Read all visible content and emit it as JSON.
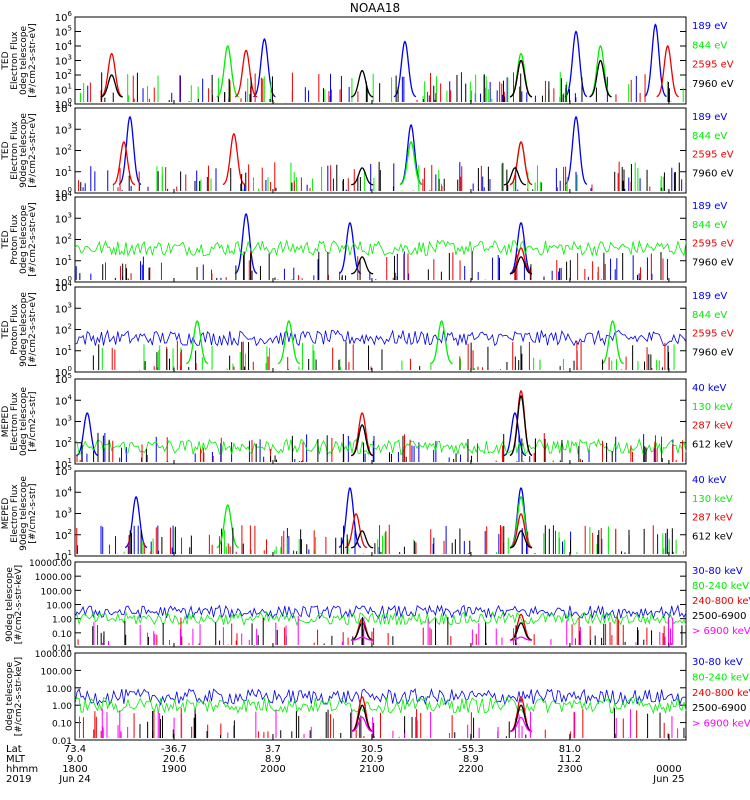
{
  "title": "NOAA18",
  "colors": {
    "black": "#000000",
    "red": "#ee0000",
    "green": "#00ee00",
    "blue": "#0000ee",
    "magenta": "#ff00ff"
  },
  "chart_data": [
    {
      "type": "line",
      "panel": 1,
      "ylabel": [
        "TED",
        "Electron Flux",
        "0deg telescope",
        "[#/cm2-s-str-eV]"
      ],
      "ylog": true,
      "ylim": [
        1,
        1000000
      ],
      "yticks": [
        "10^0",
        "10^1",
        "10^2",
        "10^3",
        "10^4",
        "10^5",
        "10^6"
      ],
      "series": [
        {
          "name": "7960 eV",
          "color": "black",
          "peaks": [
            {
              "t": 0.06,
              "y": 100
            },
            {
              "t": 0.47,
              "y": 200
            },
            {
              "t": 0.73,
              "y": 1000
            },
            {
              "t": 0.86,
              "y": 1000
            }
          ]
        },
        {
          "name": "2595 eV",
          "color": "red",
          "peaks": [
            {
              "t": 0.06,
              "y": 3000
            },
            {
              "t": 0.28,
              "y": 5000
            },
            {
              "t": 0.73,
              "y": 1000
            },
            {
              "t": 0.97,
              "y": 10000
            }
          ]
        },
        {
          "name": "844 eV",
          "color": "green",
          "peaks": [
            {
              "t": 0.25,
              "y": 10000
            },
            {
              "t": 0.73,
              "y": 3000
            },
            {
              "t": 0.86,
              "y": 10000
            }
          ]
        },
        {
          "name": "189 eV",
          "color": "blue",
          "peaks": [
            {
              "t": 0.31,
              "y": 30000
            },
            {
              "t": 0.54,
              "y": 20000
            },
            {
              "t": 0.82,
              "y": 100000
            },
            {
              "t": 0.95,
              "y": 300000
            }
          ]
        }
      ]
    },
    {
      "type": "line",
      "panel": 2,
      "ylabel": [
        "TED",
        "Electron Flux",
        "90deg telescope",
        "[#/cm2-s-str-eV]"
      ],
      "ylog": true,
      "ylim": [
        1,
        100000
      ],
      "yticks": [
        "10^0",
        "10^1",
        "10^2",
        "10^3",
        "10^4"
      ],
      "series": [
        {
          "name": "7960 eV",
          "color": "black",
          "peaks": [
            {
              "t": 0.47,
              "y": 30
            },
            {
              "t": 0.72,
              "y": 30
            }
          ]
        },
        {
          "name": "2595 eV",
          "color": "red",
          "peaks": [
            {
              "t": 0.08,
              "y": 1000
            },
            {
              "t": 0.26,
              "y": 3000
            },
            {
              "t": 0.73,
              "y": 1000
            }
          ]
        },
        {
          "name": "844 eV",
          "color": "green",
          "peaks": [
            {
              "t": 0.55,
              "y": 1000
            },
            {
              "t": 0.73,
              "y": 1000
            }
          ]
        },
        {
          "name": "189 eV",
          "color": "blue",
          "peaks": [
            {
              "t": 0.09,
              "y": 30000
            },
            {
              "t": 0.55,
              "y": 10000
            },
            {
              "t": 0.82,
              "y": 30000
            }
          ]
        }
      ]
    },
    {
      "type": "line",
      "panel": 3,
      "ylabel": [
        "TED",
        "Proton Flux",
        "0deg telescope",
        "[#/cm2-s-str-eV]"
      ],
      "ylog": true,
      "ylim": [
        1,
        100000
      ],
      "yticks": [
        "10^0",
        "10^1",
        "10^2",
        "10^3",
        "10^4"
      ],
      "series": [
        {
          "name": "7960 eV",
          "color": "black",
          "peaks": [
            {
              "t": 0.47,
              "y": 30
            },
            {
              "t": 0.73,
              "y": 30
            }
          ]
        },
        {
          "name": "2595 eV",
          "color": "red",
          "peaks": [
            {
              "t": 0.73,
              "y": 100
            }
          ]
        },
        {
          "name": "844 eV",
          "color": "green",
          "level": 100
        },
        {
          "name": "189 eV",
          "color": "blue",
          "peaks": [
            {
              "t": 0.28,
              "y": 10000
            },
            {
              "t": 0.45,
              "y": 3000
            },
            {
              "t": 0.73,
              "y": 3000
            }
          ]
        }
      ]
    },
    {
      "type": "line",
      "panel": 4,
      "ylabel": [
        "TED",
        "Proton Flux",
        "90deg telescope",
        "[#/cm2-s-str-eV]"
      ],
      "ylog": true,
      "ylim": [
        1,
        100000
      ],
      "yticks": [
        "10^0",
        "10^1",
        "10^2",
        "10^3",
        "10^4"
      ],
      "series": [
        {
          "name": "7960 eV",
          "color": "black",
          "peaks": []
        },
        {
          "name": "2595 eV",
          "color": "red",
          "peaks": []
        },
        {
          "name": "844 eV",
          "color": "green",
          "peaks": [
            {
              "t": 0.2,
              "y": 1000
            },
            {
              "t": 0.35,
              "y": 1000
            },
            {
              "t": 0.6,
              "y": 1000
            },
            {
              "t": 0.88,
              "y": 1000
            }
          ]
        },
        {
          "name": "189 eV",
          "color": "blue",
          "level": 100
        }
      ]
    },
    {
      "type": "line",
      "panel": 5,
      "ylabel": [
        "MEPED",
        "Electron Flux",
        "0deg telescope",
        "[#/cm2-s-str]"
      ],
      "ylog": true,
      "ylim": [
        10,
        1000000
      ],
      "yticks": [
        "10^1",
        "10^2",
        "10^3",
        "10^4",
        "10^5"
      ],
      "series": [
        {
          "name": "612 keV",
          "color": "black",
          "peaks": [
            {
              "t": 0.47,
              "y": 2000
            },
            {
              "t": 0.73,
              "y": 100000
            }
          ]
        },
        {
          "name": "287 keV",
          "color": "red",
          "peaks": [
            {
              "t": 0.47,
              "y": 10000
            },
            {
              "t": 0.73,
              "y": 200000
            }
          ]
        },
        {
          "name": "130 keV",
          "color": "green",
          "level": 100
        },
        {
          "name": "40 keV",
          "color": "blue",
          "peaks": [
            {
              "t": 0.02,
              "y": 10000
            },
            {
              "t": 0.72,
              "y": 10000
            }
          ]
        }
      ]
    },
    {
      "type": "line",
      "panel": 6,
      "ylabel": [
        "MEPED",
        "Electron Flux",
        "90deg telescope",
        "[#/cm2-s-str]"
      ],
      "ylog": true,
      "ylim": [
        10,
        1000000
      ],
      "yticks": [
        "10^1",
        "10^2",
        "10^3",
        "10^4",
        "10^5"
      ],
      "series": [
        {
          "name": "612 keV",
          "color": "black",
          "peaks": [
            {
              "t": 0.47,
              "y": 300
            },
            {
              "t": 0.73,
              "y": 300
            }
          ]
        },
        {
          "name": "287 keV",
          "color": "red",
          "peaks": [
            {
              "t": 0.46,
              "y": 3000
            },
            {
              "t": 0.73,
              "y": 3000
            }
          ]
        },
        {
          "name": "130 keV",
          "color": "green",
          "peaks": [
            {
              "t": 0.25,
              "y": 10000
            },
            {
              "t": 0.73,
              "y": 30000
            }
          ]
        },
        {
          "name": "40 keV",
          "color": "blue",
          "peaks": [
            {
              "t": 0.1,
              "y": 30000
            },
            {
              "t": 0.45,
              "y": 100000
            },
            {
              "t": 0.73,
              "y": 100000
            }
          ]
        }
      ]
    },
    {
      "type": "scatter",
      "panel": 7,
      "ylabel": [
        "90deg telescope",
        "[#/cm2-s-str-keV]"
      ],
      "ylog": true,
      "ylim": [
        0.01,
        10000
      ],
      "yticks": [
        "0.01",
        "0.10",
        "1.00",
        "10.00",
        "100.00",
        "1000.00",
        "10000.00"
      ],
      "series": [
        {
          "name": "> 6900 keV",
          "color": "magenta",
          "peaks": [
            {
              "t": 0.47,
              "y": 0.05
            },
            {
              "t": 0.73,
              "y": 0.05
            }
          ]
        },
        {
          "name": "2500-6900",
          "color": "black",
          "peaks": [
            {
              "t": 0.47,
              "y": 0.5
            },
            {
              "t": 0.73,
              "y": 0.5
            }
          ]
        },
        {
          "name": "240-800 keV",
          "color": "red",
          "peaks": [
            {
              "t": 0.47,
              "y": 1
            },
            {
              "t": 0.73,
              "y": 2
            }
          ]
        },
        {
          "name": "80-240 keV",
          "color": "green",
          "level": 1
        },
        {
          "name": "30-80 keV",
          "color": "blue",
          "level": 3
        }
      ]
    },
    {
      "type": "scatter",
      "panel": 8,
      "ylabel": [
        "0deg telescope",
        "[#/cm2-s-str-keV]"
      ],
      "ylog": true,
      "ylim": [
        0.01,
        1000
      ],
      "yticks": [
        "0.01",
        "0.10",
        "1.00",
        "10.00",
        "100.00",
        "1000.00"
      ],
      "series": [
        {
          "name": "> 6900 keV",
          "color": "magenta",
          "peaks": [
            {
              "t": 0.47,
              "y": 0.2
            },
            {
              "t": 0.73,
              "y": 0.2
            }
          ]
        },
        {
          "name": "2500-6900",
          "color": "black",
          "peaks": [
            {
              "t": 0.47,
              "y": 1
            },
            {
              "t": 0.73,
              "y": 1
            }
          ]
        },
        {
          "name": "240-800 keV",
          "color": "red",
          "peaks": [
            {
              "t": 0.47,
              "y": 3
            },
            {
              "t": 0.73,
              "y": 3
            }
          ]
        },
        {
          "name": "80-240 keV",
          "color": "green",
          "level": 1
        },
        {
          "name": "30-80 keV",
          "color": "blue",
          "level": 3
        }
      ]
    }
  ],
  "xaxis": {
    "row_labels": [
      "Lat",
      "MLT",
      "hhmm",
      "2019"
    ],
    "ticks": [
      {
        "t": 0.0,
        "lat": "73.4",
        "mlt": "9.0",
        "hhmm": "1800",
        "date": "Jun 24"
      },
      {
        "t": 0.162,
        "lat": "-36.7",
        "mlt": "20.6",
        "hhmm": "1900",
        "date": ""
      },
      {
        "t": 0.324,
        "lat": "3.7",
        "mlt": "8.9",
        "hhmm": "2000",
        "date": ""
      },
      {
        "t": 0.486,
        "lat": "30.5",
        "mlt": "20.9",
        "hhmm": "2100",
        "date": ""
      },
      {
        "t": 0.648,
        "lat": "-55.3",
        "mlt": "8.9",
        "hhmm": "2200",
        "date": ""
      },
      {
        "t": 0.81,
        "lat": "81.0",
        "mlt": "11.2",
        "hhmm": "2300",
        "date": ""
      },
      {
        "t": 0.972,
        "lat": "",
        "mlt": "",
        "hhmm": "0000",
        "date": "Jun 25"
      }
    ]
  }
}
